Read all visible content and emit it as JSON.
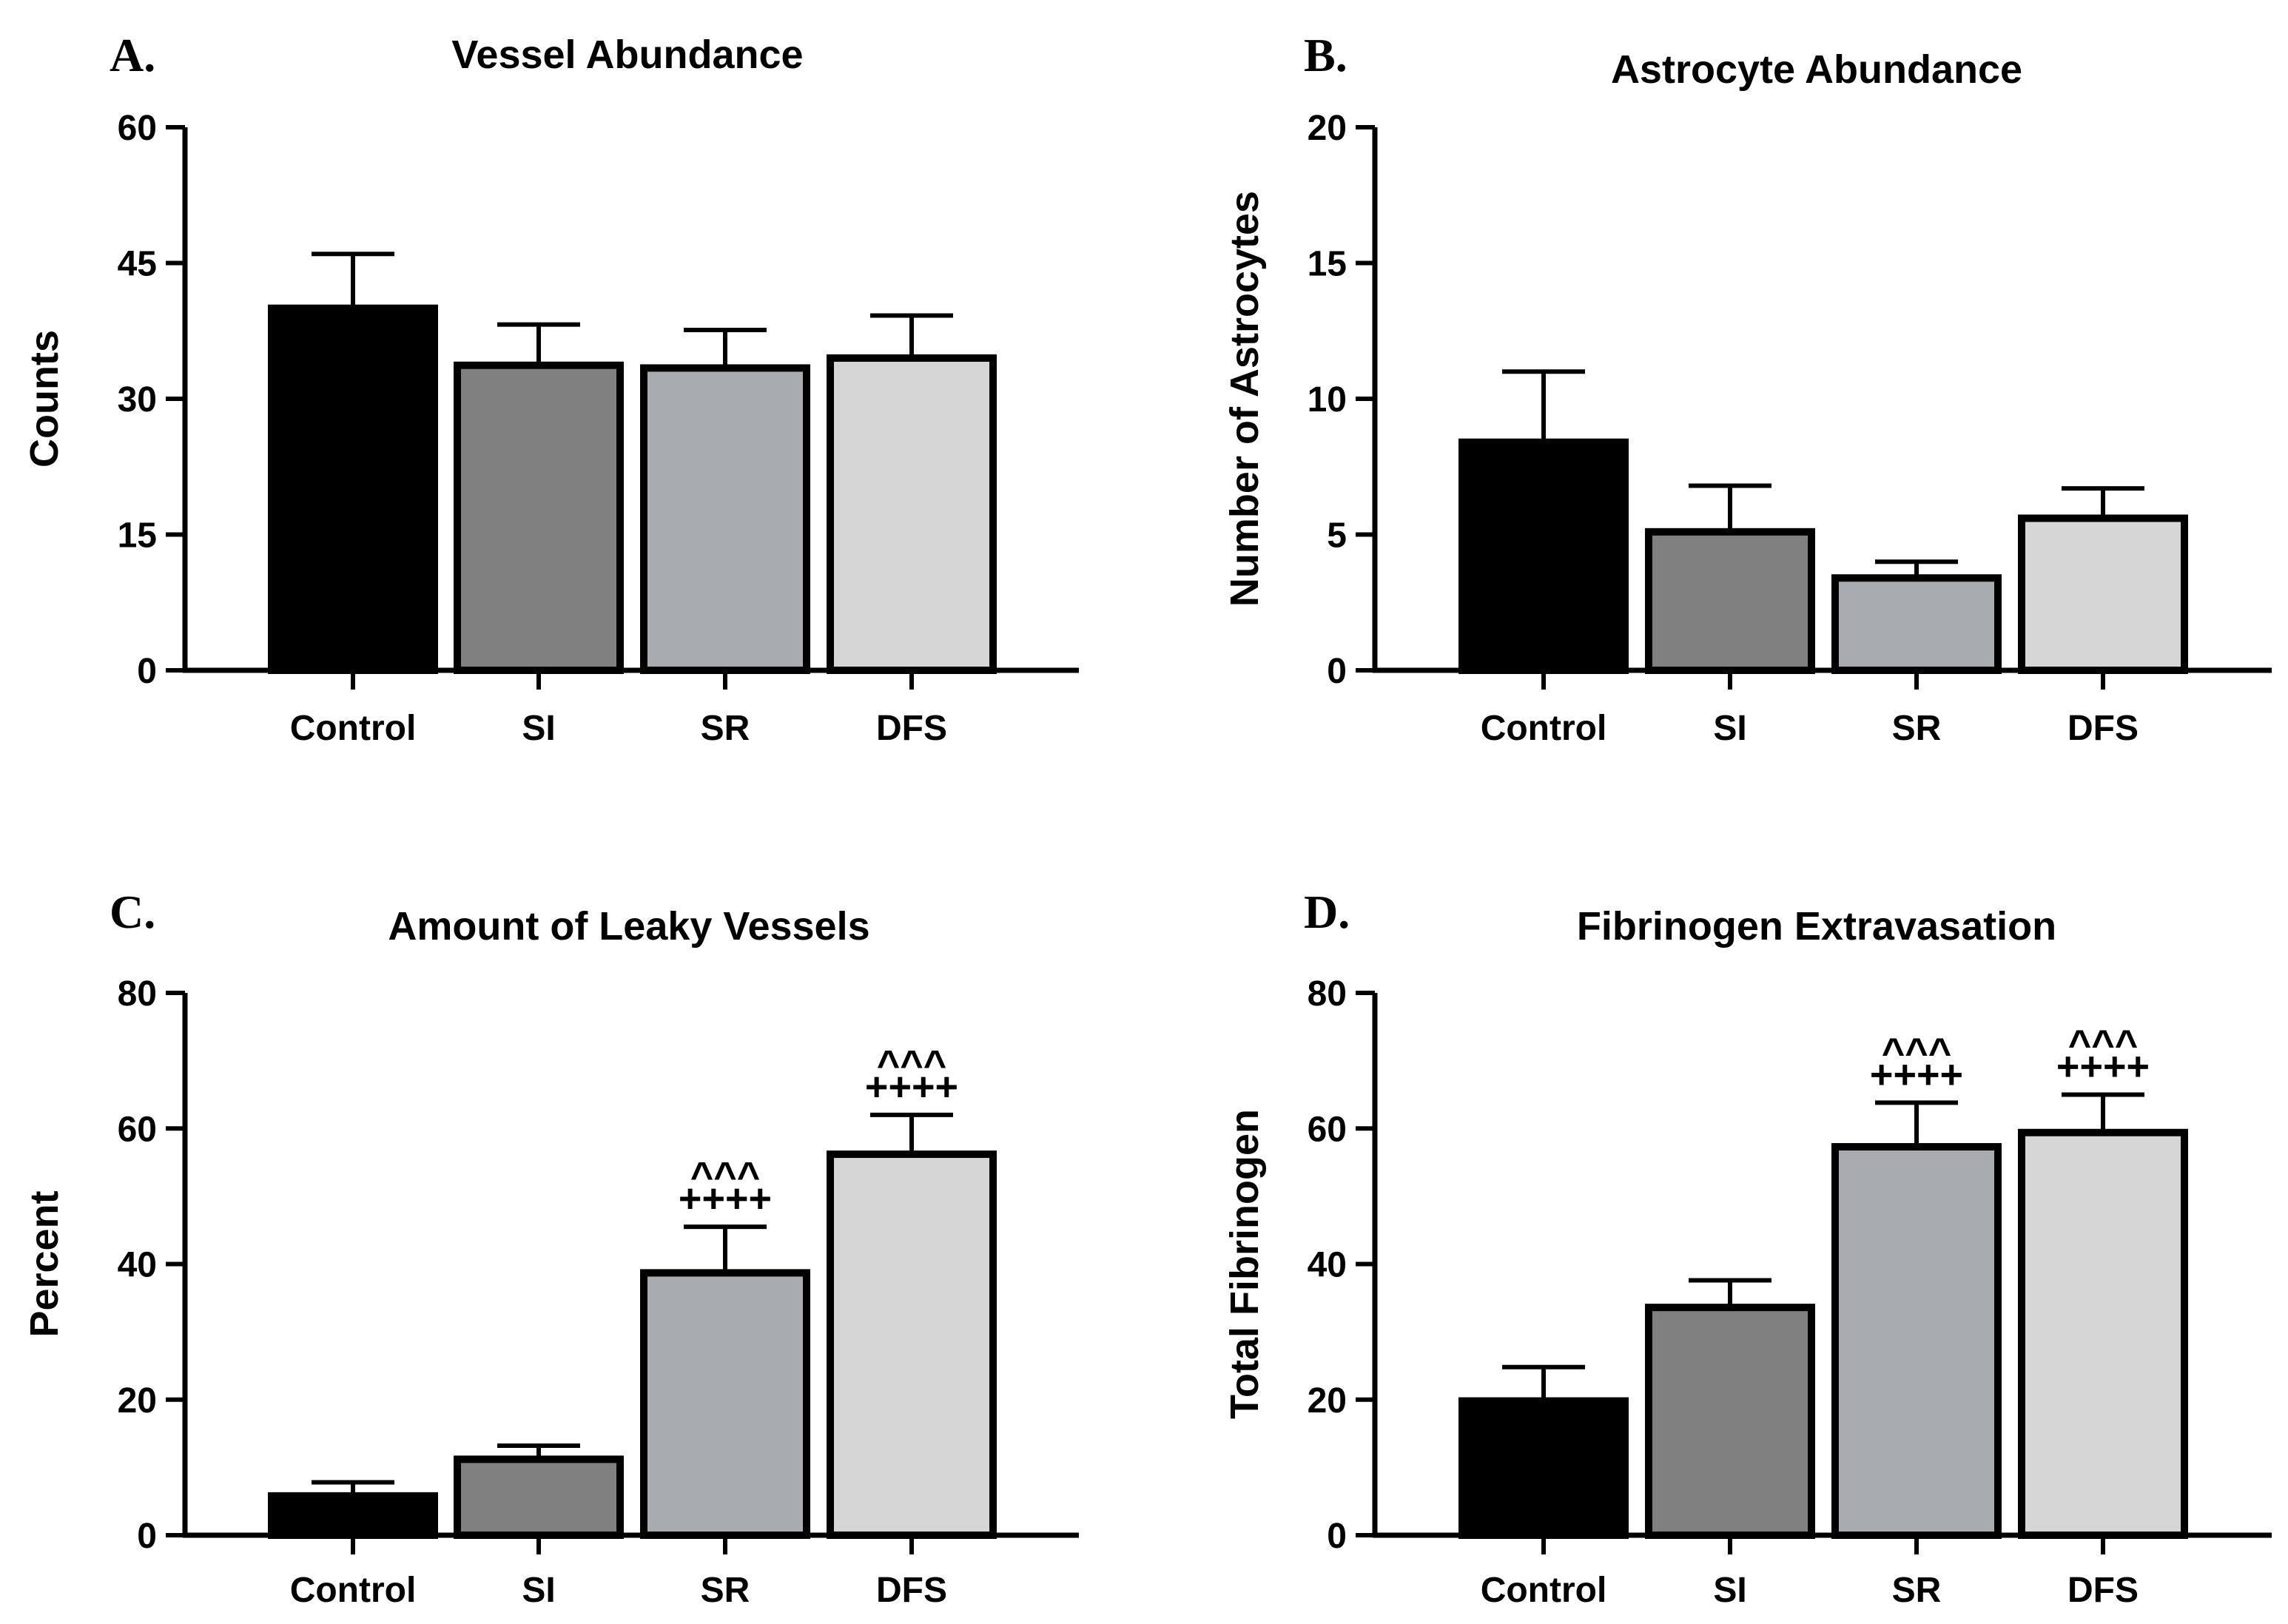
{
  "chart_data": [
    {
      "panel": "A.",
      "type": "bar",
      "title": "Vessel Abundance",
      "xlabel": "",
      "ylabel": "Counts",
      "ylim": [
        0,
        60
      ],
      "yticks": [
        0,
        15,
        30,
        45,
        60
      ],
      "categories": [
        "Control",
        "SI",
        "SR",
        "DFS"
      ],
      "values": [
        40,
        33.7,
        33.4,
        34.5
      ],
      "errors": [
        6,
        4.5,
        4.2,
        4.7
      ],
      "bar_colors": [
        "#000000",
        "#808080",
        "#a8abaf",
        "#d6d6d6"
      ],
      "significance": [
        "",
        "",
        "",
        ""
      ]
    },
    {
      "panel": "B.",
      "type": "bar",
      "title": "Astrocyte Abundance",
      "xlabel": "",
      "ylabel": "Number of Astrocytes",
      "ylim": [
        0,
        20
      ],
      "yticks": [
        0,
        5,
        10,
        15,
        20
      ],
      "categories": [
        "Control",
        "SI",
        "SR",
        "DFS"
      ],
      "values": [
        8.4,
        5.1,
        3.4,
        5.6
      ],
      "errors": [
        2.6,
        1.7,
        0.6,
        1.1
      ],
      "bar_colors": [
        "#000000",
        "#808080",
        "#a8abaf",
        "#d6d6d6"
      ],
      "significance": [
        "",
        "",
        "",
        ""
      ]
    },
    {
      "panel": "C.",
      "type": "bar",
      "title": "Amount of Leaky Vessels",
      "xlabel": "",
      "ylabel": "Percent",
      "ylim": [
        0,
        80
      ],
      "yticks": [
        0,
        20,
        40,
        60,
        80
      ],
      "categories": [
        "Control",
        "SI",
        "SR",
        "DFS"
      ],
      "values": [
        5.8,
        11.2,
        38.7,
        56.2
      ],
      "errors": [
        2,
        2,
        6.8,
        5.8
      ],
      "bar_colors": [
        "#000000",
        "#808080",
        "#a8abaf",
        "#d6d6d6"
      ],
      "significance": [
        "",
        "",
        "^^^\n++++",
        "^^^\n++++"
      ]
    },
    {
      "panel": "D.",
      "type": "bar",
      "title": "Fibrinogen Extravasation",
      "xlabel": "",
      "ylabel": "Total Fibrinogen",
      "ylim": [
        0,
        80
      ],
      "yticks": [
        0,
        20,
        40,
        60,
        80
      ],
      "categories": [
        "Control",
        "SI",
        "SR",
        "DFS"
      ],
      "values": [
        19.8,
        33.6,
        57.3,
        59.4
      ],
      "errors": [
        5,
        4,
        6.5,
        5.6
      ],
      "bar_colors": [
        "#000000",
        "#808080",
        "#a8abaf",
        "#d6d6d6"
      ],
      "significance": [
        "",
        "",
        "^^^\n++++",
        "^^^\n++++"
      ]
    }
  ]
}
